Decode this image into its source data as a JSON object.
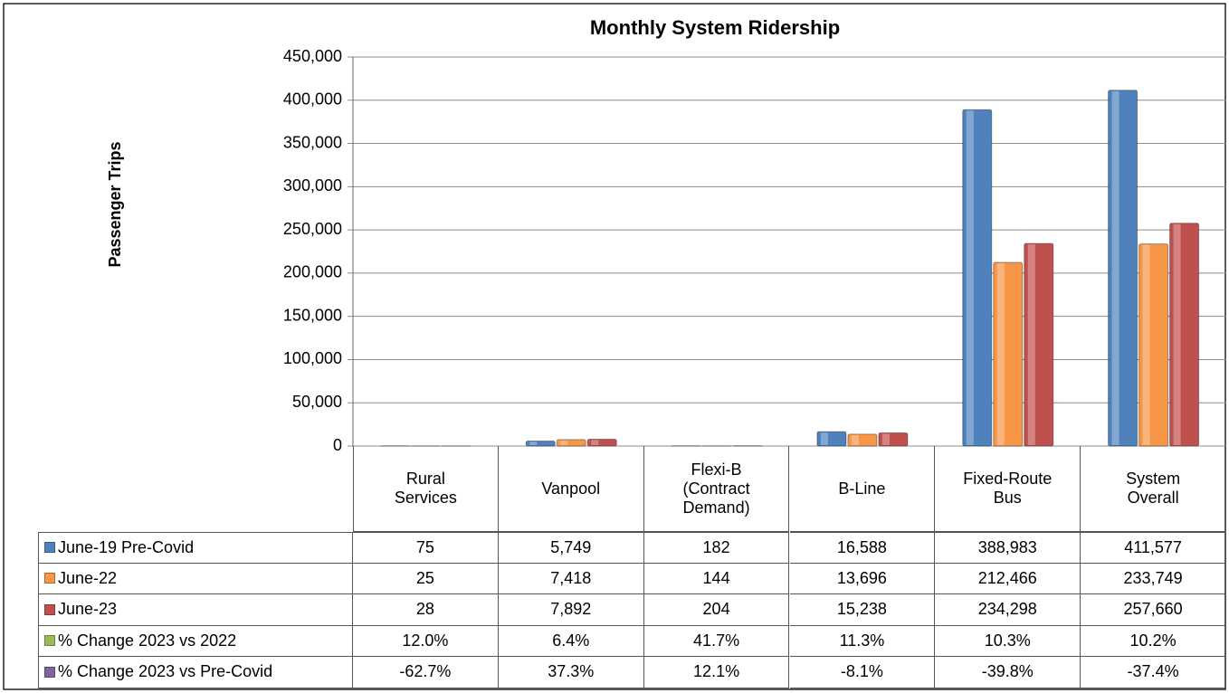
{
  "chart_data": {
    "type": "bar",
    "title": "Monthly System Ridership",
    "y_label": "Passenger  Trips",
    "categories": [
      "Rural\nServices",
      "Vanpool",
      "Flexi-B\n(Contract\nDemand)",
      "B-Line",
      "Fixed-Route\nBus",
      "System\nOverall"
    ],
    "ylim": [
      0,
      450000
    ],
    "yticks": [
      0,
      {
        "value": 50000,
        "label": "50,000"
      },
      {
        "value": 100000,
        "label": "100,000"
      },
      {
        "value": 150000,
        "label": "150,000"
      },
      {
        "value": 200000,
        "label": "200,000"
      },
      {
        "value": 250000,
        "label": "250,000"
      },
      {
        "value": 300000,
        "label": "300,000"
      },
      {
        "value": 350000,
        "label": "350,000"
      },
      {
        "value": 400000,
        "label": "400,000"
      },
      {
        "value": 450000,
        "label": "450,000"
      }
    ],
    "grid": true,
    "series": [
      {
        "name": "June-19 Pre-Covid",
        "color": "#4f81bd",
        "values": [
          75,
          5749,
          182,
          16588,
          388983,
          411577
        ],
        "value_labels": [
          "75",
          "5,749",
          "182",
          "16,588",
          "388,983",
          "411,577"
        ]
      },
      {
        "name": "June-22",
        "color": "#f79646",
        "values": [
          25,
          7418,
          144,
          13696,
          212466,
          233749
        ],
        "value_labels": [
          "25",
          "7,418",
          "144",
          "13,696",
          "212,466",
          "233,749"
        ]
      },
      {
        "name": "June-23",
        "color": "#c0504d",
        "values": [
          28,
          7892,
          204,
          15238,
          234298,
          257660
        ],
        "value_labels": [
          "28",
          "7,892",
          "204",
          "15,238",
          "234,298",
          "257,660"
        ]
      }
    ],
    "table_series": [
      {
        "name": "% Change 2023 vs 2022",
        "color": "#9bbb59",
        "values": [
          12.0,
          6.4,
          41.7,
          11.3,
          10.3,
          10.2
        ],
        "value_labels": [
          "12.0%",
          "6.4%",
          "41.7%",
          "11.3%",
          "10.3%",
          "10.2%"
        ]
      },
      {
        "name": "% Change 2023 vs Pre-Covid",
        "color": "#8064a2",
        "values": [
          -62.7,
          37.3,
          12.1,
          -8.1,
          -39.8,
          -37.4
        ],
        "value_labels": [
          "-62.7%",
          "37.3%",
          "12.1%",
          "-8.1%",
          "-39.8%",
          "-37.4%"
        ]
      }
    ]
  }
}
